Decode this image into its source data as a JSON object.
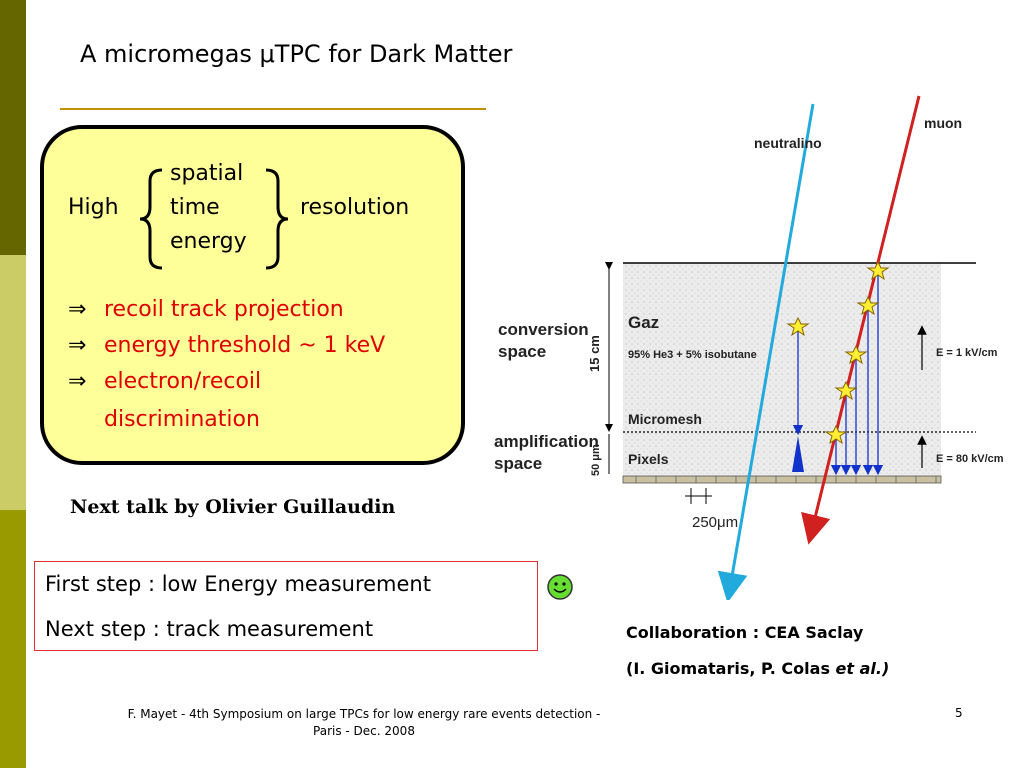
{
  "slide": {
    "title": "A micromegas μTPC for Dark Matter",
    "box": {
      "high": "High",
      "resolution": "resolution",
      "items": [
        "spatial",
        "time",
        "energy"
      ],
      "arrow": "⇒",
      "bullets": [
        "recoil track projection",
        "energy threshold ~ 1 keV",
        "electron/recoil"
      ],
      "bullet_continuation": "discrimination"
    },
    "next_talk": "Next talk by Olivier Guillaudin",
    "steps": {
      "first": "First step : low Energy measurement",
      "next": "Next step : track measurement"
    },
    "collaboration": {
      "line1": "Collaboration : CEA Saclay",
      "line2_prefix": "(I. Giomataris, P. Colas ",
      "line2_italic": "et al.)"
    },
    "footer": {
      "line1": "F. Mayet  - 4th Symposium on large TPCs  for low energy rare events detection -",
      "line2": "Paris - Dec. 2008"
    },
    "page_number": "5"
  },
  "diagram": {
    "labels": {
      "neutralino": "neutralino",
      "muon": "muon",
      "conversion1": "conversion",
      "conversion2": "space",
      "amplification1": "amplification",
      "amplification2": "space",
      "gaz": "Gaz",
      "gas_mix": "95% He3 + 5% isobutane",
      "micromesh": "Micromesh",
      "pixels": "Pixels",
      "height_15": "15 cm",
      "height_50": "50 μm",
      "field1": "E = 1 kV/cm",
      "field2": "E = 80 kV/cm",
      "pitch": "250μm"
    }
  },
  "colors": {
    "sidebar_dark": "#666600",
    "sidebar_light": "#cccc66",
    "sidebar_mid": "#999900",
    "box_fill": "#ffff99",
    "bullet_red": "#e00000",
    "rule": "#c09000",
    "neutralino_track": "#22aadd",
    "muon_track": "#d02020",
    "drift_blue": "#1133cc"
  },
  "icons": {
    "smiley": "smiley-icon",
    "brace_left": "left-brace-icon",
    "brace_right": "right-brace-icon"
  }
}
